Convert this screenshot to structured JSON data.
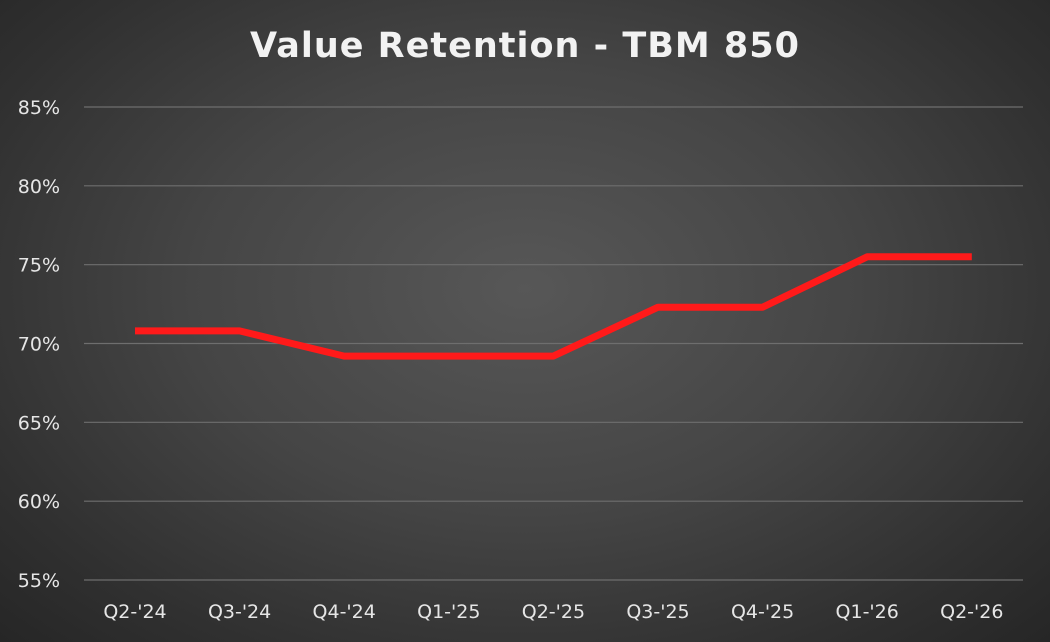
{
  "chart_data": {
    "type": "line",
    "title": "Value Retention - TBM 850",
    "xlabel": "",
    "ylabel": "",
    "categories": [
      "Q2-'24",
      "Q3-'24",
      "Q4-'24",
      "Q1-'25",
      "Q2-'25",
      "Q3-'25",
      "Q4-'25",
      "Q1-'26",
      "Q2-'26"
    ],
    "series": [
      {
        "values": [
          70.8,
          70.8,
          69.2,
          69.2,
          69.2,
          72.3,
          72.3,
          75.5,
          75.5
        ],
        "color": "#ff1a1a"
      }
    ],
    "ylim": [
      55,
      85
    ],
    "y_ticks": [
      55,
      60,
      65,
      70,
      75,
      80,
      85
    ],
    "y_tick_labels": [
      "55%",
      "60%",
      "65%",
      "70%",
      "75%",
      "80%",
      "85%"
    ],
    "grid": true,
    "legend": "none"
  }
}
